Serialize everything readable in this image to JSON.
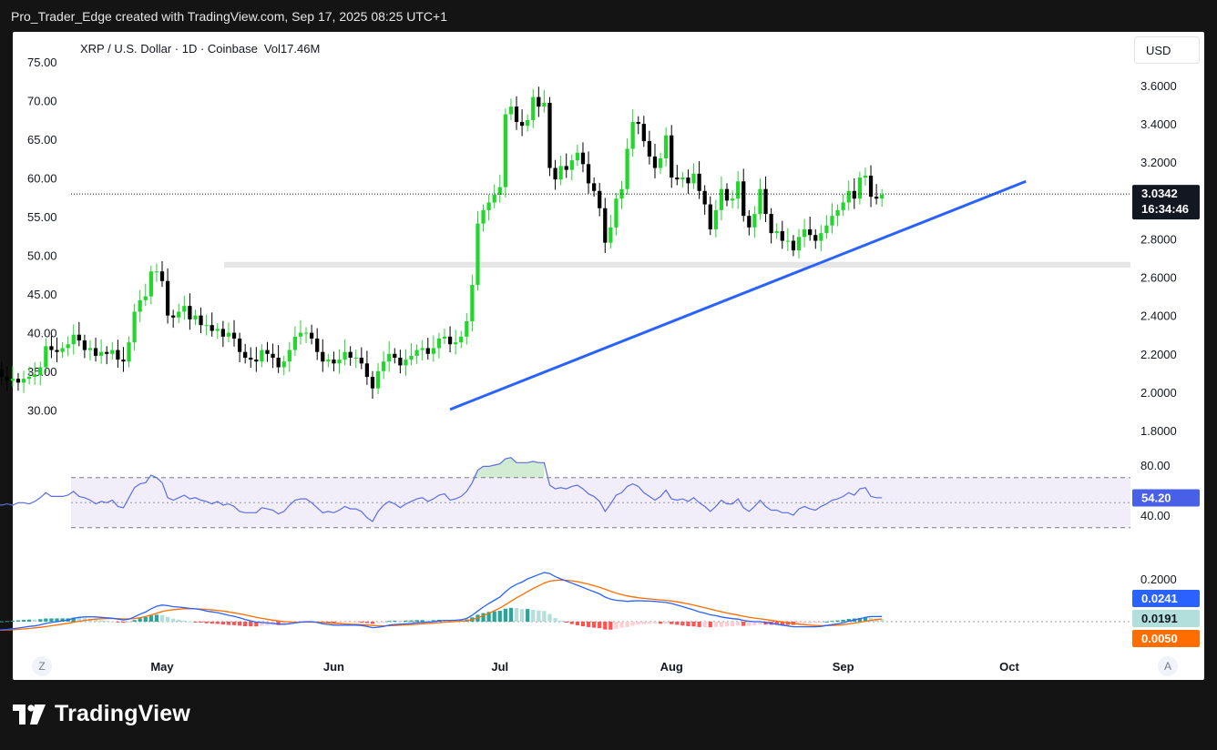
{
  "header": {
    "attribution": "Pro_Trader_Edge created with TradingView.com, Sep 17, 2025 08:25 UTC+1"
  },
  "legend": {
    "symbol_line": "XRP / U.S. Dollar · 1D · Coinbase",
    "volume": "Vol17.46M"
  },
  "currency_button": "USD",
  "footer": {
    "brand": "TradingView"
  },
  "buttons": {
    "left": "Z",
    "right": "A"
  },
  "colors": {
    "up": "#22d62c",
    "down": "#000000",
    "trendline": "#2962ff",
    "rsi": "#5b6ee1",
    "macd": "#2962ff",
    "signal": "#ff6d00"
  },
  "price_badge": {
    "price": "3.0342",
    "countdown": "16:34:46"
  },
  "rsi_badge": "54.20",
  "macd_badges": {
    "macd": "0.0241",
    "signal": "0.0191",
    "hist": "0.0050"
  },
  "chart_data": {
    "type": "candlestick",
    "left_axis_ticks": [
      "75.00",
      "70.00",
      "65.00",
      "60.00",
      "55.00",
      "50.00",
      "45.00",
      "40.00",
      "35.00",
      "30.00"
    ],
    "right_axis_ticks": [
      "3.6000",
      "3.4000",
      "3.2000",
      "3.0000",
      "2.8000",
      "2.6000",
      "2.4000",
      "2.2000",
      "2.0000",
      "1.8000"
    ],
    "x_ticks": [
      {
        "label": "May",
        "date": "2025-05-01"
      },
      {
        "label": "Jun",
        "date": "2025-06-01"
      },
      {
        "label": "Jul",
        "date": "2025-07-01"
      },
      {
        "label": "Aug",
        "date": "2025-08-01"
      },
      {
        "label": "Sep",
        "date": "2025-09-01"
      },
      {
        "label": "Oct",
        "date": "2025-10-01"
      }
    ],
    "y_range": [
      1.78,
      3.76
    ],
    "start_date": "2025-04-01",
    "end_date": "2025-09-17",
    "close": [
      2.12,
      2.08,
      2.06,
      2.07,
      2.05,
      2.07,
      2.08,
      2.09,
      2.13,
      2.24,
      2.22,
      2.21,
      2.23,
      2.25,
      2.3,
      2.27,
      2.22,
      2.23,
      2.19,
      2.21,
      2.2,
      2.22,
      2.17,
      2.16,
      2.26,
      2.42,
      2.48,
      2.5,
      2.63,
      2.63,
      2.58,
      2.4,
      2.39,
      2.42,
      2.45,
      2.38,
      2.4,
      2.35,
      2.35,
      2.32,
      2.33,
      2.29,
      2.31,
      2.28,
      2.21,
      2.18,
      2.17,
      2.16,
      2.22,
      2.2,
      2.18,
      2.13,
      2.16,
      2.22,
      2.29,
      2.31,
      2.31,
      2.28,
      2.21,
      2.16,
      2.17,
      2.15,
      2.17,
      2.21,
      2.18,
      2.18,
      2.15,
      2.08,
      2.02,
      2.11,
      2.16,
      2.2,
      2.18,
      2.14,
      2.17,
      2.19,
      2.22,
      2.23,
      2.2,
      2.23,
      2.28,
      2.29,
      2.25,
      2.26,
      2.29,
      2.37,
      2.56,
      2.88,
      2.95,
      2.99,
      3.03,
      3.07,
      3.45,
      3.49,
      3.41,
      3.39,
      3.42,
      3.54,
      3.49,
      3.51,
      3.17,
      3.11,
      3.18,
      3.16,
      3.21,
      3.25,
      3.19,
      3.09,
      3.05,
      2.96,
      2.78,
      2.86,
      3.01,
      3.06,
      3.27,
      3.41,
      3.4,
      3.31,
      3.23,
      3.17,
      3.22,
      3.34,
      3.12,
      3.11,
      3.12,
      3.09,
      3.14,
      3.05,
      2.98,
      2.85,
      2.95,
      3.06,
      3.0,
      3.01,
      3.1,
      2.92,
      2.86,
      2.93,
      3.06,
      2.93,
      2.83,
      2.84,
      2.79,
      2.79,
      2.74,
      2.81,
      2.85,
      2.82,
      2.79,
      2.83,
      2.87,
      2.92,
      2.95,
      2.99,
      3.05,
      3.01,
      3.12,
      3.13,
      3.02,
      3.01,
      3.03
    ],
    "trendline": [
      {
        "date": "2025-06-22",
        "price": 1.91
      },
      {
        "date": "2025-09-01",
        "price": 2.7
      },
      {
        "date": "2025-10-04",
        "price": 3.1
      }
    ],
    "support_zone": [
      2.65,
      2.68
    ],
    "rsi": {
      "upper": 70,
      "lower": 30,
      "mid": 50,
      "ticks": [
        "80.00",
        "40.00"
      ],
      "y_range": [
        20,
        90
      ],
      "values": [
        49,
        48,
        49,
        48,
        50,
        50,
        49,
        51,
        54,
        58,
        55,
        55,
        55,
        56,
        59,
        55,
        54,
        52,
        49,
        51,
        50,
        52,
        47,
        46,
        54,
        62,
        65,
        66,
        72,
        70,
        66,
        54,
        52,
        54,
        56,
        53,
        54,
        52,
        51,
        49,
        51,
        48,
        49,
        47,
        43,
        42,
        42,
        42,
        46,
        45,
        44,
        41,
        43,
        48,
        52,
        53,
        53,
        50,
        46,
        42,
        43,
        42,
        44,
        47,
        45,
        45,
        43,
        38,
        35,
        43,
        48,
        51,
        49,
        46,
        49,
        51,
        53,
        54,
        51,
        53,
        56,
        57,
        52,
        53,
        55,
        59,
        66,
        76,
        79,
        79,
        80,
        81,
        85,
        86,
        82,
        82,
        82,
        83,
        82,
        82,
        64,
        61,
        62,
        61,
        63,
        64,
        61,
        57,
        55,
        51,
        43,
        49,
        56,
        58,
        63,
        65,
        63,
        58,
        55,
        52,
        55,
        60,
        53,
        52,
        53,
        51,
        54,
        50,
        47,
        43,
        47,
        52,
        49,
        49,
        53,
        46,
        43,
        47,
        52,
        47,
        44,
        44,
        42,
        42,
        40,
        45,
        47,
        45,
        44,
        47,
        49,
        52,
        53,
        55,
        58,
        56,
        61,
        62,
        55,
        54,
        54
      ]
    },
    "macd": {
      "ticks": [
        "0.2000"
      ],
      "y_range": [
        -0.08,
        0.32
      ],
      "macd": [
        -0.04,
        -0.038,
        -0.036,
        -0.033,
        -0.03,
        -0.026,
        -0.022,
        -0.02,
        -0.015,
        -0.008,
        -0.004,
        0.0,
        0.004,
        0.008,
        0.016,
        0.02,
        0.022,
        0.023,
        0.022,
        0.02,
        0.018,
        0.016,
        0.012,
        0.008,
        0.012,
        0.022,
        0.035,
        0.045,
        0.06,
        0.072,
        0.078,
        0.075,
        0.07,
        0.068,
        0.065,
        0.062,
        0.06,
        0.056,
        0.05,
        0.046,
        0.042,
        0.036,
        0.03,
        0.025,
        0.018,
        0.01,
        0.004,
        -0.002,
        -0.004,
        -0.006,
        -0.008,
        -0.012,
        -0.012,
        -0.01,
        -0.006,
        -0.002,
        0.0,
        0.0,
        -0.004,
        -0.01,
        -0.013,
        -0.016,
        -0.017,
        -0.016,
        -0.016,
        -0.016,
        -0.018,
        -0.022,
        -0.028,
        -0.026,
        -0.022,
        -0.016,
        -0.013,
        -0.012,
        -0.01,
        -0.008,
        -0.005,
        -0.003,
        -0.002,
        0.0,
        0.004,
        0.006,
        0.006,
        0.007,
        0.009,
        0.015,
        0.03,
        0.05,
        0.068,
        0.085,
        0.1,
        0.115,
        0.14,
        0.16,
        0.175,
        0.185,
        0.2,
        0.21,
        0.22,
        0.23,
        0.225,
        0.21,
        0.2,
        0.19,
        0.18,
        0.17,
        0.16,
        0.15,
        0.14,
        0.13,
        0.115,
        0.105,
        0.1,
        0.098,
        0.095,
        0.097,
        0.098,
        0.097,
        0.096,
        0.095,
        0.092,
        0.09,
        0.085,
        0.078,
        0.07,
        0.062,
        0.055,
        0.046,
        0.04,
        0.032,
        0.028,
        0.022,
        0.018,
        0.014,
        0.012,
        0.006,
        0.002,
        0.0,
        0.0,
        -0.004,
        -0.008,
        -0.012,
        -0.016,
        -0.02,
        -0.024,
        -0.024,
        -0.024,
        -0.024,
        -0.024,
        -0.022,
        -0.018,
        -0.014,
        -0.01,
        -0.005,
        0.002,
        0.008,
        0.014,
        0.02,
        0.024,
        0.024,
        0.0241
      ]
    }
  }
}
